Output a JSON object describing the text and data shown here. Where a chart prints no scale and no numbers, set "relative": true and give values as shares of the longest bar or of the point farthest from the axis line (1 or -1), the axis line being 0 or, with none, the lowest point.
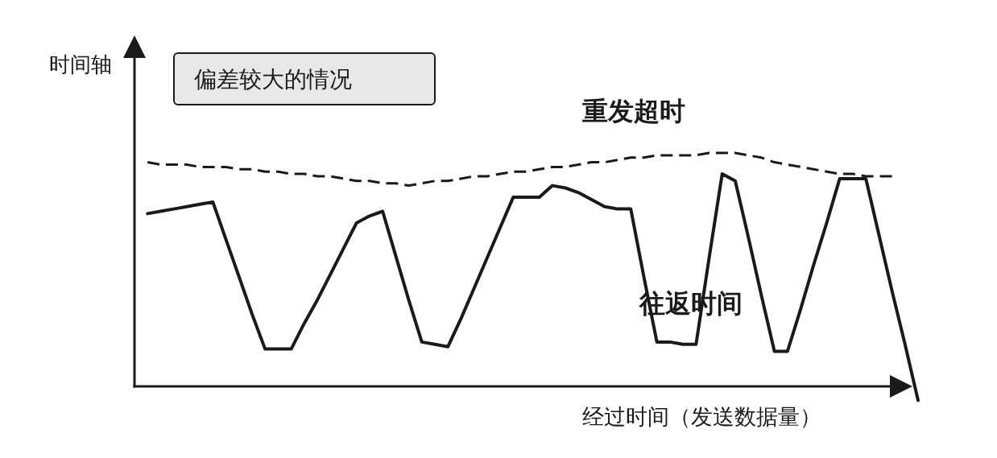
{
  "chart_data": {
    "type": "line",
    "title": "偏差较大的情况",
    "xlabel": "经过时间（发送数据量）",
    "ylabel": "时间轴",
    "relative": true,
    "categories": [
      null,
      null,
      null,
      null,
      null,
      null,
      null,
      null,
      null,
      null,
      null,
      null,
      null,
      null,
      null,
      null,
      null,
      null,
      null,
      null,
      null,
      null,
      null,
      null,
      null,
      null,
      null,
      null,
      null,
      null,
      null,
      null,
      null,
      null,
      null,
      null,
      null,
      null,
      null,
      null,
      null,
      null,
      null,
      null,
      null,
      null,
      null,
      null,
      null,
      null,
      null,
      null,
      null,
      null,
      null,
      null,
      null,
      null,
      null,
      null,
      null
    ],
    "series": [
      {
        "name": "重发超时",
        "color": "#1a1a1a",
        "line_style": "dashed",
        "values": [
          null,
          0.96,
          0.95,
          0.95,
          0.95,
          0.94,
          0.94,
          0.94,
          0.93,
          0.93,
          0.92,
          0.92,
          0.91,
          0.91,
          0.9,
          0.9,
          0.89,
          0.88,
          0.88,
          0.87,
          0.87,
          0.86,
          0.87,
          0.88,
          0.88,
          0.89,
          0.9,
          0.9,
          0.91,
          0.92,
          0.92,
          0.93,
          0.94,
          0.94,
          0.95,
          0.96,
          0.96,
          0.97,
          0.98,
          0.98,
          0.99,
          0.99,
          0.99,
          0.99,
          1.0,
          1.0,
          1.0,
          0.99,
          0.98,
          0.96,
          0.95,
          0.94,
          0.93,
          0.92,
          0.91,
          0.91,
          0.9,
          0.9,
          0.9,
          null,
          null
        ]
      },
      {
        "name": "往返时间",
        "color": "#1a1a1a",
        "line_style": "solid",
        "values": [
          null,
          0.74,
          0.75,
          0.76,
          0.77,
          0.78,
          0.79,
          0.63,
          0.47,
          0.31,
          0.16,
          0.16,
          0.16,
          0.27,
          0.37,
          0.48,
          0.59,
          0.7,
          0.73,
          0.75,
          0.56,
          0.37,
          0.19,
          0.18,
          0.17,
          0.29,
          0.42,
          0.55,
          0.68,
          0.81,
          0.81,
          0.81,
          0.86,
          0.85,
          0.83,
          0.8,
          0.77,
          0.76,
          0.76,
          0.47,
          0.19,
          0.19,
          0.18,
          0.18,
          0.55,
          0.91,
          0.88,
          0.64,
          0.39,
          0.15,
          0.15,
          0.33,
          0.52,
          0.7,
          0.89,
          0.89,
          0.89,
          0.65,
          0.41,
          0.18,
          -0.06
        ]
      }
    ]
  }
}
